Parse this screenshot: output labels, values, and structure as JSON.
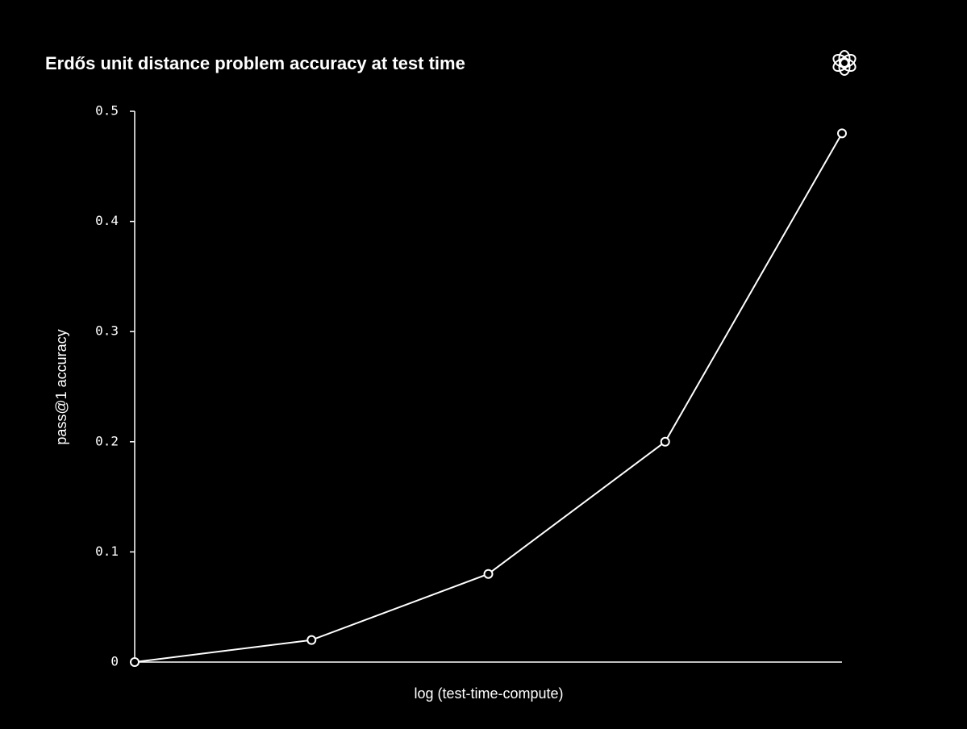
{
  "chart_data": {
    "type": "line",
    "title": "Erdős unit distance problem accuracy at test time",
    "x_label": "log (test-time-compute)",
    "y_label": "pass@1 accuracy",
    "categories": [
      null,
      null,
      null,
      null,
      null
    ],
    "values": [
      0,
      0.02,
      0.08,
      0.2,
      0.48
    ],
    "color": "#ffffff",
    "ylim": [
      0,
      0.5
    ],
    "yticks": [
      0,
      0.1,
      0.2,
      0.3,
      0.4,
      0.5
    ]
  }
}
